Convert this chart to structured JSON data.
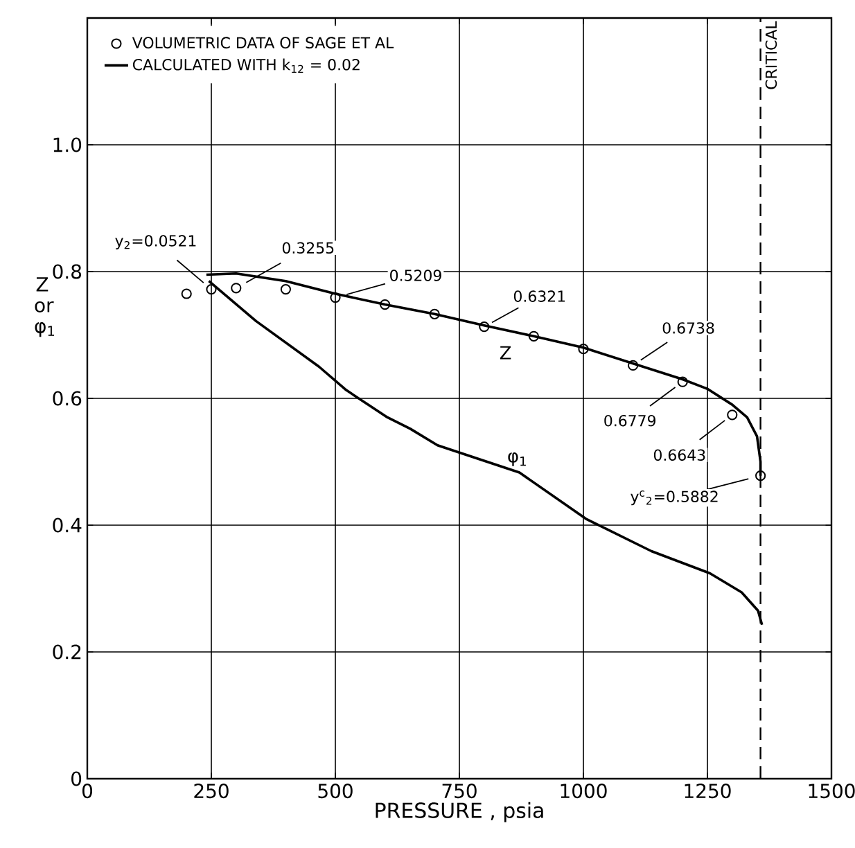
{
  "chart_data": {
    "type": "line",
    "xlabel": "PRESSURE , psia",
    "ylabel": "Z or φ$_{1}$",
    "xlim": [
      0,
      1500
    ],
    "ylim": [
      0,
      1.2
    ],
    "xticks": [
      0,
      250,
      500,
      750,
      1000,
      1250,
      1500
    ],
    "yticks": [
      0,
      0.2,
      0.4,
      0.6,
      0.8,
      {
        "value": 1,
        "label": "1.0"
      }
    ],
    "grid": true,
    "legend": "top left",
    "series": [
      {
        "type": "scatter",
        "name": "VOLUMETRIC DATA OF SAGE ET AL",
        "color": "#000000",
        "marker": "circle",
        "x": [
          200,
          250,
          300,
          400,
          500,
          600,
          700,
          800,
          900,
          1000,
          1100,
          1200,
          1300,
          1357
        ],
        "values": [
          0.765,
          0.772,
          0.774,
          0.772,
          0.759,
          0.748,
          0.733,
          0.713,
          0.698,
          0.678,
          0.652,
          0.626,
          0.574,
          0.478
        ]
      },
      {
        "name": "CALCULATED WITH k$_{12}$ = 0.02",
        "color": "#000000",
        "marker": "none",
        "line_style": "solid",
        "x": [
          240,
          300,
          400,
          500,
          600,
          700,
          800,
          900,
          1000,
          1100,
          1200,
          1250,
          1300,
          1330,
          1350,
          1357,
          1357
        ],
        "values": [
          0.795,
          0.797,
          0.785,
          0.765,
          0.748,
          0.733,
          0.715,
          0.698,
          0.68,
          0.655,
          0.63,
          0.615,
          0.59,
          0.57,
          0.54,
          0.5,
          0.478
        ]
      },
      {
        "color": "#000000",
        "marker": "none",
        "line_style": "solid",
        "x": [
          245,
          340,
          467,
          522,
          605,
          651,
          706,
          871,
          1005,
          1137,
          1255,
          1319,
          1352,
          1360
        ],
        "values": [
          0.785,
          0.722,
          0.65,
          0.613,
          0.57,
          0.552,
          0.526,
          0.483,
          0.41,
          0.359,
          0.324,
          0.294,
          0.265,
          0.243
        ]
      }
    ],
    "ref_lines": [
      {
        "axis": "x",
        "value": 1357,
        "label": "CRITICAL",
        "line_style": "dashed"
      }
    ],
    "annotations": [
      {
        "text": "y$_{2}$=0.0521",
        "x": 250,
        "y": 0.772
      },
      {
        "text": "0.3255",
        "x": 300,
        "y": 0.774
      },
      {
        "text": "0.5209",
        "x": 500,
        "y": 0.759
      },
      {
        "text": "0.6321",
        "x": 800,
        "y": 0.713
      },
      {
        "text": "0.6738",
        "x": 1100,
        "y": 0.652
      },
      {
        "text": "0.6779",
        "x": 1200,
        "y": 0.626
      },
      {
        "text": "0.6643",
        "x": 1300,
        "y": 0.574
      },
      {
        "text": "y$^{c}$$_{2}$=0.5882",
        "x": 1357,
        "y": 0.478
      },
      "Z",
      "φ$_{1}$"
    ]
  }
}
